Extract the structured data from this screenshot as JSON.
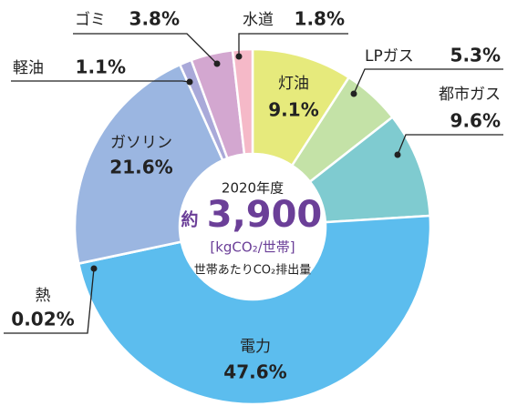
{
  "chart_data": {
    "type": "donut",
    "categories": [
      "灯油",
      "LPガス",
      "都市ガス",
      "電力",
      "熱",
      "ガソリン",
      "軽油",
      "ゴミ",
      "水道"
    ],
    "values": [
      9.1,
      5.3,
      9.6,
      47.6,
      0.02,
      21.6,
      1.1,
      3.8,
      1.8
    ],
    "value_labels": [
      "9.1%",
      "5.3%",
      "9.6%",
      "47.6%",
      "0.02%",
      "21.6%",
      "1.1%",
      "3.8%",
      "1.8%"
    ],
    "colors": [
      "#e6ea7c",
      "#c4e2a7",
      "#7fcbd0",
      "#5cbdee",
      "#5cbdee",
      "#9bb6e1",
      "#a9a9d9",
      "#d3a7d0",
      "#f5b9c8"
    ],
    "center": {
      "year": "2020年度",
      "prefix": "約",
      "total": {
        "value": 3900,
        "label": "3,900"
      },
      "unit": "[kgCO₂/世帯]",
      "caption": "世帯あたりCO₂排出量"
    }
  }
}
